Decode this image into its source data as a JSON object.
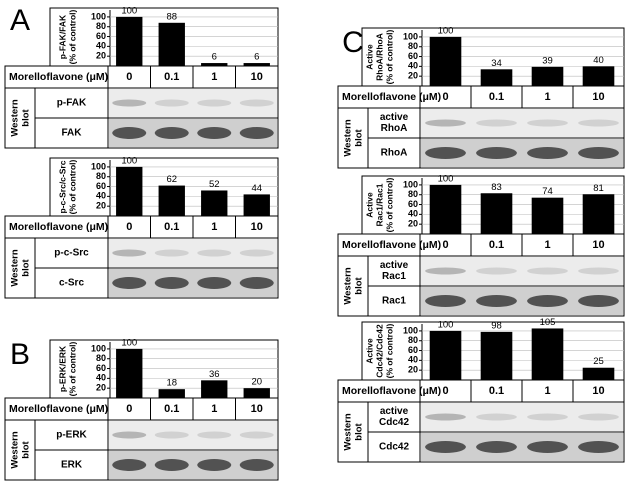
{
  "chart_data": [
    {
      "type": "bar",
      "panel": "A",
      "ylabel": [
        "p-FAK/FAK",
        "(% of control)"
      ],
      "categories": [
        "0",
        "0.1",
        "1",
        "10"
      ],
      "values": [
        100,
        88,
        6,
        6
      ],
      "color": "#000000",
      "ylim": [
        0,
        110
      ],
      "yticks": [
        20,
        40,
        60,
        80,
        100
      ],
      "condition_label": "Morelloflavone (μM)",
      "blot_label": [
        "Western",
        "blot"
      ],
      "blot_rows": [
        [
          "p-FAK"
        ],
        [
          "FAK"
        ]
      ]
    },
    {
      "type": "bar",
      "ylabel": [
        "p-c-Src/c-Src",
        "(% of control)"
      ],
      "categories": [
        "0",
        "0.1",
        "1",
        "10"
      ],
      "values": [
        100,
        62,
        52,
        44
      ],
      "color": "#000000",
      "ylim": [
        0,
        110
      ],
      "yticks": [
        20,
        40,
        60,
        80,
        100
      ],
      "condition_label": "Morelloflavone (μM)",
      "blot_label": [
        "Western",
        "blot"
      ],
      "blot_rows": [
        [
          "p-c-Src"
        ],
        [
          "c-Src"
        ]
      ]
    },
    {
      "type": "bar",
      "panel": "B",
      "ylabel": [
        "p-ERK/ERK",
        "(% of control)"
      ],
      "categories": [
        "0",
        "0.1",
        "1",
        "10"
      ],
      "values": [
        100,
        18,
        36,
        20
      ],
      "color": "#000000",
      "ylim": [
        0,
        110
      ],
      "yticks": [
        20,
        40,
        60,
        80,
        100
      ],
      "condition_label": "Morelloflavone (μM)",
      "blot_label": [
        "Western",
        "blot"
      ],
      "blot_rows": [
        [
          "p-ERK"
        ],
        [
          "ERK"
        ]
      ]
    },
    {
      "type": "bar",
      "panel": "C",
      "ylabel": [
        "Active",
        "RhoA/RhoA",
        "(% of control)"
      ],
      "categories": [
        "0",
        "0.1",
        "1",
        "10"
      ],
      "values": [
        100,
        34,
        39,
        40
      ],
      "color": "#000000",
      "ylim": [
        0,
        110
      ],
      "yticks": [
        20,
        40,
        60,
        80,
        100
      ],
      "condition_label": "Morelloflavone (μM)",
      "blot_label": [
        "Western",
        "blot"
      ],
      "blot_rows": [
        [
          "active",
          "RhoA"
        ],
        [
          "RhoA"
        ]
      ]
    },
    {
      "type": "bar",
      "ylabel": [
        "Active",
        "Rac1/Rac1",
        "(% of control)"
      ],
      "categories": [
        "0",
        "0.1",
        "1",
        "10"
      ],
      "values": [
        100,
        83,
        74,
        81
      ],
      "color": "#000000",
      "ylim": [
        0,
        110
      ],
      "yticks": [
        20,
        40,
        60,
        80,
        100
      ],
      "condition_label": "Morelloflavone (μM)",
      "blot_label": [
        "Western",
        "blot"
      ],
      "blot_rows": [
        [
          "active",
          "Rac1"
        ],
        [
          "Rac1"
        ]
      ]
    },
    {
      "type": "bar",
      "ylabel": [
        "Active",
        "Cdc42/Cdc42",
        "(% of control)"
      ],
      "categories": [
        "0",
        "0.1",
        "1",
        "10"
      ],
      "values": [
        100,
        98,
        105,
        25
      ],
      "color": "#000000",
      "ylim": [
        0,
        110
      ],
      "yticks": [
        20,
        40,
        60,
        80,
        100
      ],
      "condition_label": "Morelloflavone (μM)",
      "blot_label": [
        "Western",
        "blot"
      ],
      "blot_rows": [
        [
          "active",
          "Cdc42"
        ],
        [
          "Cdc42"
        ]
      ]
    }
  ]
}
